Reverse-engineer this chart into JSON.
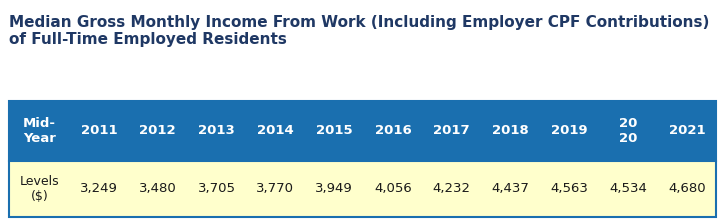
{
  "title_line1": "Median Gross Monthly Income From Work (Including Employer CPF Contributions)",
  "title_line2": "of Full-Time Employed Residents",
  "title_color": "#1f3864",
  "title_fontsize": 11,
  "header_bg_color": "#1a6faf",
  "header_text_color": "#ffffff",
  "row_bg_color": "#ffffcc",
  "row_text_color": "#1a1a1a",
  "header_label": "Mid-\nYear",
  "row_label": "Levels\n($)",
  "years": [
    "2011",
    "2012",
    "2013",
    "2014",
    "2015",
    "2016",
    "2017",
    "2018",
    "2019",
    "20\n20",
    "2021"
  ],
  "values": [
    "3,249",
    "3,480",
    "3,705",
    "3,770",
    "3,949",
    "4,056",
    "4,232",
    "4,437",
    "4,563",
    "4,534",
    "4,680"
  ],
  "header_fontsize": 9.5,
  "value_fontsize": 9.5,
  "label_fontsize": 9.0,
  "fig_bg_color": "#ffffff",
  "table_border_color": "#1a6faf"
}
